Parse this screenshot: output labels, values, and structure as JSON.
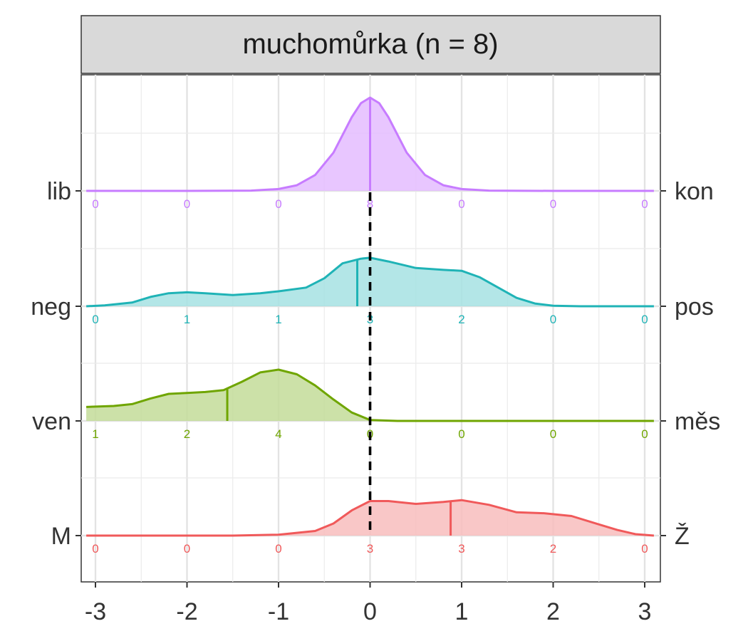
{
  "chart_data": {
    "type": "area",
    "title": "muchomůrka (n = 8)",
    "xlabel": "",
    "ylabel": "",
    "xlim": [
      -3.1,
      3.1
    ],
    "x_ticks": [
      -3,
      -2,
      -1,
      0,
      1,
      2,
      3
    ],
    "x_tick_labels": [
      "-3",
      "-2",
      "-1",
      "0",
      "1",
      "2",
      "3"
    ],
    "reference_line_x": 0,
    "grid": true,
    "count_positions": [
      -3,
      -2,
      -1,
      0,
      1,
      2,
      3
    ],
    "series": [
      {
        "left_label": "lib",
        "right_label": "kon",
        "color": "#C77CFF",
        "fill": "#E4BCFF",
        "counts": [
          0,
          0,
          0,
          8,
          0,
          0,
          0
        ],
        "mean": 0,
        "density": [
          [
            -3.1,
            0
          ],
          [
            -2,
            0
          ],
          [
            -1.3,
            0.003
          ],
          [
            -1,
            0.02
          ],
          [
            -0.8,
            0.06
          ],
          [
            -0.6,
            0.17
          ],
          [
            -0.4,
            0.41
          ],
          [
            -0.2,
            0.79
          ],
          [
            -0.1,
            0.94
          ],
          [
            0,
            1.0
          ],
          [
            0.1,
            0.94
          ],
          [
            0.2,
            0.79
          ],
          [
            0.4,
            0.41
          ],
          [
            0.6,
            0.17
          ],
          [
            0.8,
            0.06
          ],
          [
            1,
            0.02
          ],
          [
            1.3,
            0.003
          ],
          [
            2,
            0
          ],
          [
            3.1,
            0
          ]
        ]
      },
      {
        "left_label": "neg",
        "right_label": "pos",
        "color": "#1FB3B6",
        "fill": "#A6E2E3",
        "counts": [
          0,
          1,
          1,
          3,
          2,
          0,
          0
        ],
        "mean": -0.14,
        "density": [
          [
            -3.1,
            0
          ],
          [
            -2.9,
            0.01
          ],
          [
            -2.6,
            0.04
          ],
          [
            -2.4,
            0.1
          ],
          [
            -2.2,
            0.14
          ],
          [
            -2,
            0.15
          ],
          [
            -1.8,
            0.14
          ],
          [
            -1.5,
            0.12
          ],
          [
            -1.2,
            0.14
          ],
          [
            -1,
            0.16
          ],
          [
            -0.7,
            0.2
          ],
          [
            -0.5,
            0.3
          ],
          [
            -0.3,
            0.46
          ],
          [
            -0.1,
            0.51
          ],
          [
            0,
            0.52
          ],
          [
            0.2,
            0.48
          ],
          [
            0.5,
            0.41
          ],
          [
            0.8,
            0.39
          ],
          [
            1,
            0.38
          ],
          [
            1.2,
            0.31
          ],
          [
            1.4,
            0.2
          ],
          [
            1.6,
            0.09
          ],
          [
            1.8,
            0.03
          ],
          [
            2,
            0.005
          ],
          [
            2.3,
            0
          ],
          [
            3.1,
            0
          ]
        ]
      },
      {
        "left_label": "ven",
        "right_label": "měs",
        "color": "#6FA500",
        "fill": "#C3DC99",
        "counts": [
          1,
          2,
          4,
          0,
          0,
          0,
          0
        ],
        "mean": -1.56,
        "density": [
          [
            -3.1,
            0.15
          ],
          [
            -2.8,
            0.16
          ],
          [
            -2.6,
            0.18
          ],
          [
            -2.4,
            0.24
          ],
          [
            -2.2,
            0.29
          ],
          [
            -2,
            0.3
          ],
          [
            -1.8,
            0.31
          ],
          [
            -1.6,
            0.33
          ],
          [
            -1.4,
            0.42
          ],
          [
            -1.2,
            0.52
          ],
          [
            -1,
            0.55
          ],
          [
            -0.8,
            0.5
          ],
          [
            -0.6,
            0.38
          ],
          [
            -0.4,
            0.23
          ],
          [
            -0.2,
            0.09
          ],
          [
            0,
            0.01
          ],
          [
            0.3,
            0
          ],
          [
            3.1,
            0
          ]
        ]
      },
      {
        "left_label": "M",
        "right_label": "Ž",
        "color": "#F0595A",
        "fill": "#F8BDBD",
        "counts": [
          0,
          0,
          0,
          3,
          3,
          2,
          0
        ],
        "mean": 0.88,
        "density": [
          [
            -3.1,
            0
          ],
          [
            -1.5,
            0
          ],
          [
            -1,
            0.01
          ],
          [
            -0.6,
            0.05
          ],
          [
            -0.4,
            0.13
          ],
          [
            -0.2,
            0.27
          ],
          [
            0,
            0.37
          ],
          [
            0.2,
            0.37
          ],
          [
            0.5,
            0.34
          ],
          [
            0.8,
            0.36
          ],
          [
            1,
            0.38
          ],
          [
            1.3,
            0.33
          ],
          [
            1.6,
            0.25
          ],
          [
            1.9,
            0.24
          ],
          [
            2.2,
            0.21
          ],
          [
            2.5,
            0.12
          ],
          [
            2.7,
            0.06
          ],
          [
            2.9,
            0.015
          ],
          [
            3.1,
            0
          ]
        ]
      }
    ]
  }
}
